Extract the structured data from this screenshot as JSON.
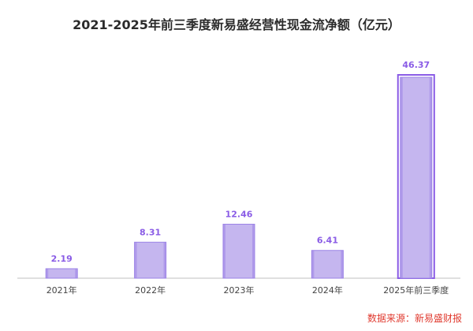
{
  "chart_data": {
    "type": "bar",
    "title": "2021-2025年前三季度新易盛经营性现金流净额（亿元）",
    "categories": [
      "2021年",
      "2022年",
      "2023年",
      "2024年",
      "2025年前三季度"
    ],
    "values": [
      2.19,
      8.31,
      12.46,
      6.41,
      46.37
    ],
    "data_labels": [
      "2.19",
      "8.31",
      "12.46",
      "6.41",
      "46.37"
    ],
    "ylim": [
      0,
      50
    ],
    "grid": false,
    "legend": "none",
    "colors": {
      "bar_fill": "#c5b6ef",
      "bar_edge": "#9c84e6",
      "highlight_edge": "#8a5ce6",
      "label": "#8a5ce6",
      "axis": "#bfbfbf"
    }
  },
  "source": "数据来源：新易盛财报"
}
